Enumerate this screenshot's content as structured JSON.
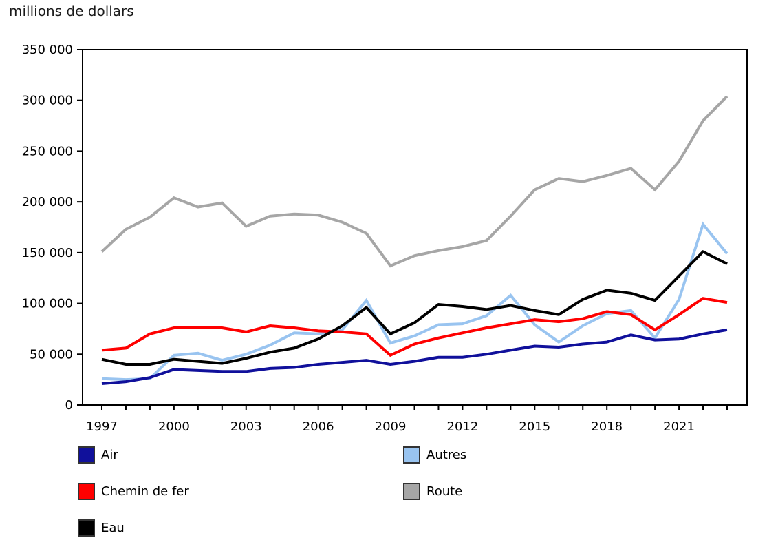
{
  "title": "millions de dollars",
  "chart_data": {
    "type": "line",
    "x": [
      1997,
      1998,
      1999,
      2000,
      2001,
      2002,
      2003,
      2004,
      2005,
      2006,
      2007,
      2008,
      2009,
      2010,
      2011,
      2012,
      2013,
      2014,
      2015,
      2016,
      2017,
      2018,
      2019,
      2020,
      2021,
      2022,
      2023
    ],
    "xtick_labels": [
      1997,
      2000,
      2003,
      2006,
      2009,
      2012,
      2015,
      2018,
      2021
    ],
    "ylim": [
      0,
      350000
    ],
    "ytick_step": 50000,
    "grid": false,
    "legend_position": "bottom",
    "ylabel": "millions de dollars",
    "xlabel": "",
    "series": [
      {
        "name": "Air",
        "color": "#10109B",
        "z": 5,
        "values": [
          21000,
          23000,
          27000,
          35000,
          34000,
          33000,
          33000,
          36000,
          37000,
          40000,
          42000,
          44000,
          40000,
          43000,
          47000,
          47000,
          50000,
          54000,
          58000,
          57000,
          60000,
          62000,
          69000,
          64000,
          65000,
          70000,
          74000
        ]
      },
      {
        "name": "Autres",
        "color": "#99C4F0",
        "z": 2,
        "values": [
          26000,
          25000,
          26000,
          49000,
          51000,
          44000,
          50000,
          59000,
          71000,
          70000,
          74000,
          103000,
          61000,
          68000,
          79000,
          80000,
          88000,
          108000,
          79000,
          62000,
          78000,
          90000,
          93000,
          66000,
          104000,
          178000,
          149000
        ]
      },
      {
        "name": "Chemin de fer",
        "color": "#FF0000",
        "z": 3,
        "values": [
          54000,
          56000,
          70000,
          76000,
          76000,
          76000,
          72000,
          78000,
          76000,
          73000,
          72000,
          70000,
          49000,
          60000,
          66000,
          71000,
          76000,
          80000,
          84000,
          82000,
          85000,
          92000,
          89000,
          74000,
          89000,
          105000,
          101000
        ]
      },
      {
        "name": "Route",
        "color": "#A6A6A6",
        "z": 1,
        "values": [
          151000,
          173000,
          185000,
          204000,
          195000,
          199000,
          176000,
          186000,
          188000,
          187000,
          180000,
          169000,
          137000,
          147000,
          152000,
          156000,
          162000,
          186000,
          212000,
          223000,
          220000,
          226000,
          233000,
          212000,
          240000,
          280000,
          304000
        ]
      },
      {
        "name": "Eau",
        "color": "#000000",
        "z": 4,
        "values": [
          45000,
          40000,
          40000,
          45000,
          43000,
          41000,
          46000,
          52000,
          56000,
          65000,
          78000,
          96000,
          70000,
          81000,
          99000,
          97000,
          94000,
          98000,
          93000,
          89000,
          104000,
          113000,
          110000,
          103000,
          127000,
          151000,
          139000
        ]
      }
    ]
  },
  "legend": {
    "columns": [
      [
        "Air",
        "Chemin de fer",
        "Eau"
      ],
      [
        "Autres",
        "Route"
      ]
    ]
  }
}
